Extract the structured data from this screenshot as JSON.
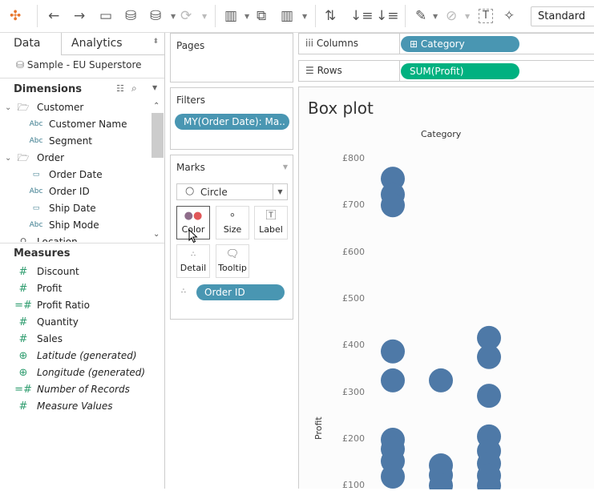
{
  "toolbar": {
    "icons": [
      "tableau-logo-icon",
      "undo-icon",
      "redo-icon",
      "save-icon",
      "new-data-source-icon",
      "pause-updates-icon",
      "refresh-icon",
      "new-worksheet-icon",
      "duplicate-sheet-icon",
      "clear-sheet-icon",
      "swap-icon",
      "sort-ascending-icon",
      "sort-descending-icon",
      "highlight-icon",
      "group-icon",
      "label-icon",
      "pin-icon"
    ],
    "view_mode": "Standard"
  },
  "left": {
    "tabs": [
      "Data",
      "Analytics"
    ],
    "datasource": "Sample - EU Superstore",
    "dimensions_title": "Dimensions",
    "dimensions": [
      {
        "type": "folder",
        "label": "Customer"
      },
      {
        "type": "Abc",
        "label": "Customer Name"
      },
      {
        "type": "Abc",
        "label": "Segment"
      },
      {
        "type": "folder",
        "label": "Order"
      },
      {
        "type": "date",
        "label": "Order Date"
      },
      {
        "type": "Abc",
        "label": "Order ID"
      },
      {
        "type": "date",
        "label": "Ship Date"
      },
      {
        "type": "Abc",
        "label": "Ship Mode"
      },
      {
        "type": "geo",
        "label": "Location"
      }
    ],
    "measures_title": "Measures",
    "measures": [
      {
        "type": "#",
        "label": "Discount"
      },
      {
        "type": "#",
        "label": "Profit"
      },
      {
        "type": "=#",
        "label": "Profit Ratio"
      },
      {
        "type": "#",
        "label": "Quantity"
      },
      {
        "type": "#",
        "label": "Sales"
      },
      {
        "type": "globe",
        "label": "Latitude (generated)",
        "italic": true
      },
      {
        "type": "globe",
        "label": "Longitude (generated)",
        "italic": true
      },
      {
        "type": "=#",
        "label": "Number of Records",
        "italic": true
      },
      {
        "type": "#",
        "label": "Measure Values",
        "italic": true
      }
    ]
  },
  "cards": {
    "pages": "Pages",
    "filters": "Filters",
    "filter_pill": "MY(Order Date): Ma..",
    "marks": "Marks",
    "mark_type": "Circle",
    "buttons": [
      "Color",
      "Size",
      "Label",
      "Detail",
      "Tooltip"
    ],
    "detail_pill": "Order ID"
  },
  "shelves": {
    "columns_label": "Columns",
    "columns_pill": "Category",
    "rows_label": "Rows",
    "rows_pill": "SUM(Profit)"
  },
  "colors": {
    "dimension_pill": "#4996b2",
    "measure_pill": "#00b180",
    "mark": "#4e79a7"
  },
  "chart_data": {
    "type": "scatter",
    "title": "Box plot",
    "column_header": "Category",
    "ylabel": "Profit",
    "ylim": [
      100,
      800
    ],
    "yticks": [
      "£800",
      "£700",
      "£600",
      "£500",
      "£400",
      "£300",
      "£200",
      "£100"
    ],
    "ytick_values": [
      800,
      700,
      600,
      500,
      400,
      300,
      200,
      100
    ],
    "series": [
      {
        "values": [
          757,
          723,
          700,
          387,
          325,
          198,
          178,
          152,
          119
        ]
      },
      {
        "values": [
          325,
          143,
          122,
          100
        ]
      },
      {
        "values": [
          416,
          375,
          292,
          205,
          174,
          147,
          121,
          100
        ]
      }
    ]
  }
}
